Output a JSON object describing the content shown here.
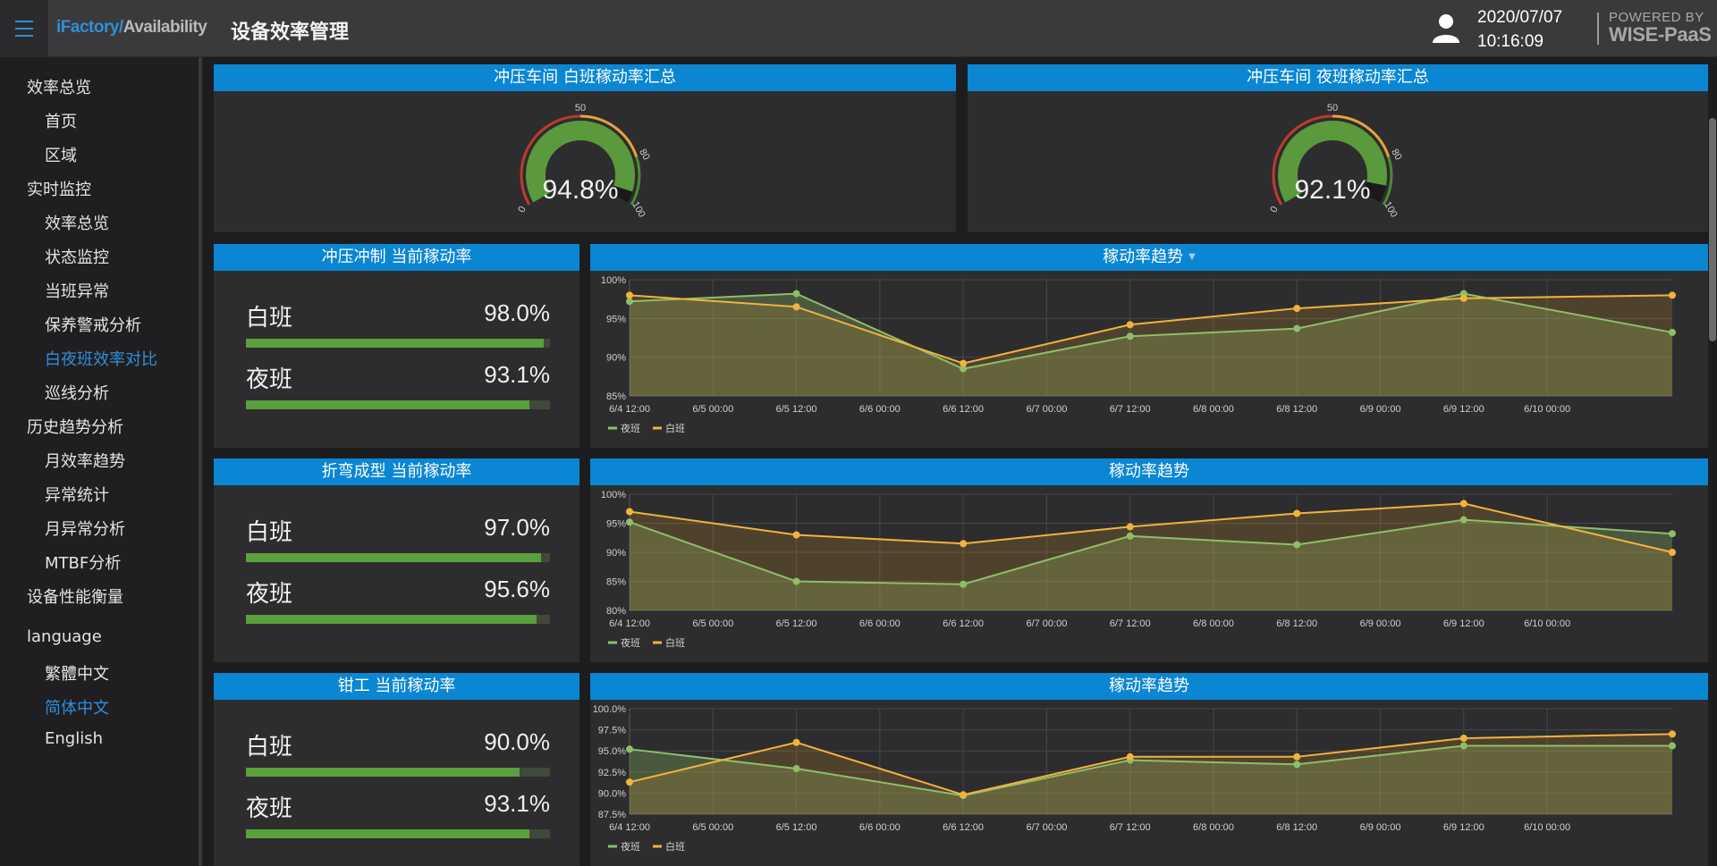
{
  "header": {
    "brand_part1": "iFactory/",
    "brand_part2": "Availability",
    "title": "设备效率管理",
    "date": "2020/07/07",
    "time": "10:16:09",
    "powered_line1": "POWERED BY",
    "powered_line2": "WISE-PaaS"
  },
  "sidebar": {
    "items": [
      {
        "label": "效率总览",
        "level": 1
      },
      {
        "label": "首页",
        "level": 2
      },
      {
        "label": "区域",
        "level": 2
      },
      {
        "label": "实时监控",
        "level": 1
      },
      {
        "label": "效率总览",
        "level": 2
      },
      {
        "label": "状态监控",
        "level": 2
      },
      {
        "label": "当班异常",
        "level": 2
      },
      {
        "label": "保养警戒分析",
        "level": 2
      },
      {
        "label": "白夜班效率对比",
        "level": 2,
        "active": true
      },
      {
        "label": "巡线分析",
        "level": 2
      },
      {
        "label": "历史趋势分析",
        "level": 1
      },
      {
        "label": "月效率趋势",
        "level": 2
      },
      {
        "label": "异常统计",
        "level": 2
      },
      {
        "label": "月异常分析",
        "level": 2
      },
      {
        "label": "MTBF分析",
        "level": 2
      },
      {
        "label": "设备性能衡量",
        "level": 1
      },
      {
        "label": "language",
        "level": 1
      },
      {
        "label": "繁體中文",
        "level": 2
      },
      {
        "label": "简体中文",
        "level": 2,
        "active": true
      },
      {
        "label": "English",
        "level": 2
      }
    ]
  },
  "gauges": [
    {
      "title": "冲压车间 白班稼动率汇总",
      "value": 94.8,
      "value_text": "94.8%",
      "ticks": [
        "0",
        "50",
        "80",
        "100"
      ]
    },
    {
      "title": "冲压车间 夜班稼动率汇总",
      "value": 92.1,
      "value_text": "92.1%",
      "ticks": [
        "0",
        "50",
        "80",
        "100"
      ]
    }
  ],
  "rate_panels": [
    {
      "title": "冲压冲制 当前稼动率",
      "day_label": "白班",
      "day_value": 98.0,
      "day_text": "98.0%",
      "night_label": "夜班",
      "night_value": 93.1,
      "night_text": "93.1%"
    },
    {
      "title": "折弯成型 当前稼动率",
      "day_label": "白班",
      "day_value": 97.0,
      "day_text": "97.0%",
      "night_label": "夜班",
      "night_value": 95.6,
      "night_text": "95.6%"
    },
    {
      "title": "钳工 当前稼动率",
      "day_label": "白班",
      "day_value": 90.0,
      "day_text": "90.0%",
      "night_label": "夜班",
      "night_value": 93.1,
      "night_text": "93.1%"
    }
  ],
  "trend_titles": [
    "稼动率趋势",
    "稼动率趋势",
    "稼动率趋势"
  ],
  "colors": {
    "accent": "#0a86d2",
    "night_series": "#8fbe6a",
    "day_series": "#f0b43c",
    "gauge_green": "#5a9a3c",
    "bar_green": "#5aa03c"
  },
  "chart_data": [
    {
      "type": "area",
      "title": "稼动率趋势",
      "x_ticks": [
        "6/4 12:00",
        "6/5 00:00",
        "6/5 12:00",
        "6/6 00:00",
        "6/6 12:00",
        "6/7 00:00",
        "6/7 12:00",
        "6/8 00:00",
        "6/8 12:00",
        "6/9 00:00",
        "6/9 12:00",
        "6/10 00:00"
      ],
      "y_ticks": [
        "100%",
        "95%",
        "90%",
        "85%"
      ],
      "ylim": [
        85,
        100
      ],
      "xlim": [
        "6/4 12:00",
        "6/10 18:00"
      ],
      "legend_position": "bottom-left",
      "series": [
        {
          "name": "夜班",
          "x": [
            "6/4 12:00",
            "6/5 12:00",
            "6/6 12:00",
            "6/7 12:00",
            "6/8 12:00",
            "6/9 12:00",
            "6/10 18:00"
          ],
          "values": [
            97.2,
            98.2,
            88.5,
            92.7,
            93.7,
            98.2,
            93.2
          ]
        },
        {
          "name": "白班",
          "x": [
            "6/4 12:00",
            "6/5 12:00",
            "6/6 12:00",
            "6/7 12:00",
            "6/8 12:00",
            "6/9 12:00",
            "6/10 18:00"
          ],
          "values": [
            98.0,
            96.5,
            89.2,
            94.2,
            96.3,
            97.6,
            98.0
          ]
        }
      ]
    },
    {
      "type": "area",
      "title": "稼动率趋势",
      "x_ticks": [
        "6/4 12:00",
        "6/5 00:00",
        "6/5 12:00",
        "6/6 00:00",
        "6/6 12:00",
        "6/7 00:00",
        "6/7 12:00",
        "6/8 00:00",
        "6/8 12:00",
        "6/9 00:00",
        "6/9 12:00",
        "6/10 00:00"
      ],
      "y_ticks": [
        "100%",
        "95%",
        "90%",
        "85%",
        "80%"
      ],
      "ylim": [
        80,
        100
      ],
      "xlim": [
        "6/4 12:00",
        "6/10 18:00"
      ],
      "legend_position": "bottom-left",
      "series": [
        {
          "name": "夜班",
          "x": [
            "6/4 12:00",
            "6/5 12:00",
            "6/6 12:00",
            "6/7 12:00",
            "6/8 12:00",
            "6/9 12:00",
            "6/10 18:00"
          ],
          "values": [
            95.2,
            85.0,
            84.5,
            92.8,
            91.3,
            95.6,
            93.2
          ]
        },
        {
          "name": "白班",
          "x": [
            "6/4 12:00",
            "6/5 12:00",
            "6/6 12:00",
            "6/7 12:00",
            "6/8 12:00",
            "6/9 12:00",
            "6/10 18:00"
          ],
          "values": [
            97.0,
            93.0,
            91.5,
            94.4,
            96.7,
            98.4,
            90.0
          ]
        }
      ]
    },
    {
      "type": "area",
      "title": "稼动率趋势",
      "x_ticks": [
        "6/4 12:00",
        "6/5 00:00",
        "6/5 12:00",
        "6/6 00:00",
        "6/6 12:00",
        "6/7 00:00",
        "6/7 12:00",
        "6/8 00:00",
        "6/8 12:00",
        "6/9 00:00",
        "6/9 12:00",
        "6/10 00:00"
      ],
      "y_ticks": [
        "100.0%",
        "97.5%",
        "95.0%",
        "92.5%",
        "90.0%",
        "87.5%"
      ],
      "ylim": [
        87.5,
        100
      ],
      "xlim": [
        "6/4 12:00",
        "6/10 18:00"
      ],
      "legend_position": "bottom-left",
      "series": [
        {
          "name": "夜班",
          "x": [
            "6/4 12:00",
            "6/5 12:00",
            "6/6 12:00",
            "6/7 12:00",
            "6/8 12:00",
            "6/9 12:00",
            "6/10 18:00"
          ],
          "values": [
            95.2,
            92.9,
            89.7,
            93.9,
            93.4,
            95.6,
            95.6
          ]
        },
        {
          "name": "白班",
          "x": [
            "6/4 12:00",
            "6/5 12:00",
            "6/6 12:00",
            "6/7 12:00",
            "6/8 12:00",
            "6/9 12:00",
            "6/10 18:00"
          ],
          "values": [
            91.3,
            96.0,
            89.8,
            94.3,
            94.3,
            96.5,
            97.0
          ]
        }
      ]
    }
  ]
}
